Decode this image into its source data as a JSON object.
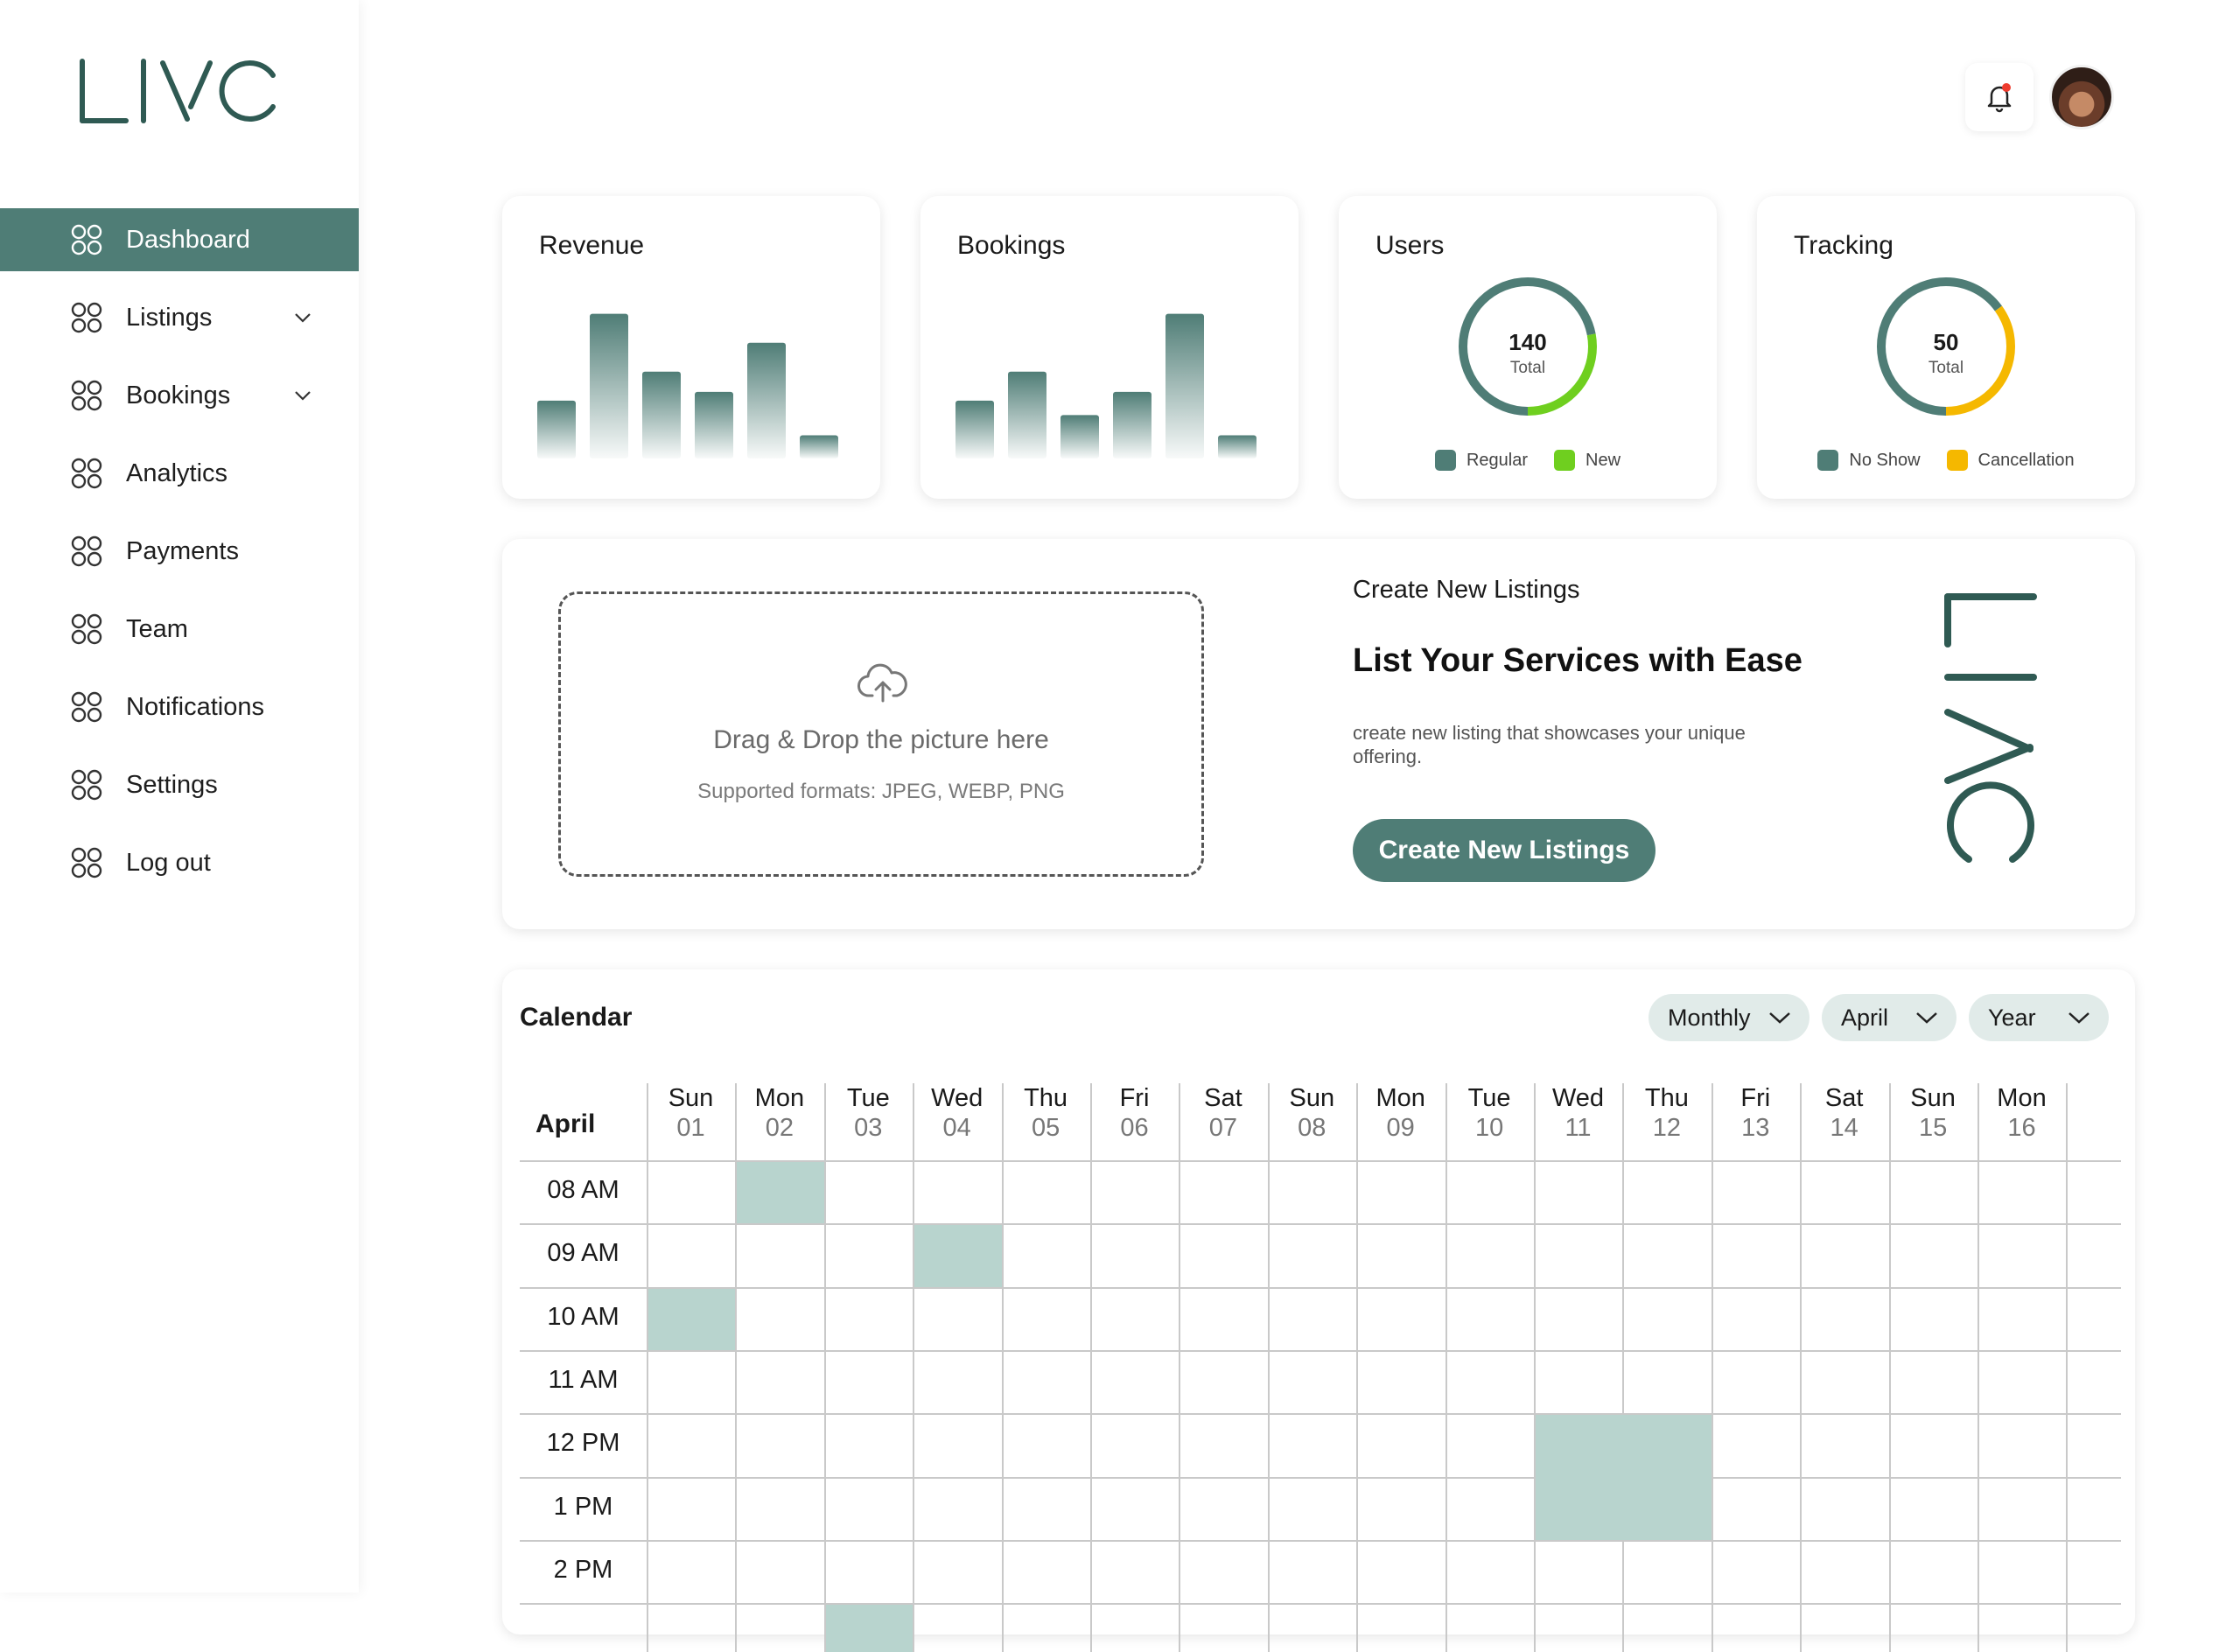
{
  "brand": {
    "logo_text": "LIVO",
    "accent": "#4f7d76",
    "accent_light": "#b8d4ce",
    "green": "#6fcf1f",
    "amber": "#f5b800"
  },
  "sidebar": {
    "items": [
      {
        "label": "Dashboard",
        "active": true,
        "expandable": false
      },
      {
        "label": "Listings",
        "active": false,
        "expandable": true
      },
      {
        "label": "Bookings",
        "active": false,
        "expandable": true
      },
      {
        "label": "Analytics",
        "active": false,
        "expandable": false
      },
      {
        "label": "Payments",
        "active": false,
        "expandable": false
      },
      {
        "label": "Team",
        "active": false,
        "expandable": false
      },
      {
        "label": "Notifications",
        "active": false,
        "expandable": false
      },
      {
        "label": "Settings",
        "active": false,
        "expandable": false
      },
      {
        "label": "Log out",
        "active": false,
        "expandable": false
      }
    ]
  },
  "header": {
    "bell_icon": "bell-icon",
    "has_notification_dot": true
  },
  "stats": {
    "revenue": {
      "title": "Revenue"
    },
    "bookings": {
      "title": "Bookings"
    },
    "users": {
      "title": "Users",
      "value": "140",
      "label": "Total",
      "legend": [
        "Regular",
        "New"
      ]
    },
    "tracking": {
      "title": "Tracking",
      "value": "50",
      "label": "Total",
      "legend": [
        "No Show",
        "Cancellation"
      ]
    }
  },
  "chart_data": [
    {
      "type": "bar",
      "title": "Revenue",
      "values": [
        20,
        50,
        30,
        23,
        40,
        8
      ],
      "categories": [
        "",
        "",
        "",
        "",
        "",
        ""
      ],
      "ylim": [
        0,
        52
      ]
    },
    {
      "type": "bar",
      "title": "Bookings",
      "values": [
        20,
        30,
        15,
        23,
        50,
        8
      ],
      "categories": [
        "",
        "",
        "",
        "",
        "",
        ""
      ],
      "ylim": [
        0,
        52
      ]
    },
    {
      "type": "pie",
      "title": "Users",
      "slices": [
        {
          "name": "Regular",
          "value": 0.72
        },
        {
          "name": "New",
          "value": 0.28
        }
      ]
    },
    {
      "type": "pie",
      "title": "Tracking",
      "slices": [
        {
          "name": "No Show",
          "value": 0.65
        },
        {
          "name": "Cancellation",
          "value": 0.35
        }
      ]
    }
  ],
  "upload": {
    "text": "Drag & Drop the picture here",
    "formats": "Supported formats: JPEG, WEBP, PNG"
  },
  "create_listing": {
    "kicker": "Create New Listings",
    "title": "List Your Services with Ease",
    "description": "create new listing that showcases your unique offering.",
    "button": "Create New Listings"
  },
  "calendar": {
    "title": "Calendar",
    "filters": {
      "view": "Monthly",
      "month": "April",
      "year": "Year"
    },
    "month_label": "April",
    "days": [
      {
        "dow": "Sun",
        "num": "01"
      },
      {
        "dow": "Mon",
        "num": "02"
      },
      {
        "dow": "Tue",
        "num": "03"
      },
      {
        "dow": "Wed",
        "num": "04"
      },
      {
        "dow": "Thu",
        "num": "05"
      },
      {
        "dow": "Fri",
        "num": "06"
      },
      {
        "dow": "Sat",
        "num": "07"
      },
      {
        "dow": "Sun",
        "num": "08"
      },
      {
        "dow": "Mon",
        "num": "09"
      },
      {
        "dow": "Tue",
        "num": "10"
      },
      {
        "dow": "Wed",
        "num": "11"
      },
      {
        "dow": "Thu",
        "num": "12"
      },
      {
        "dow": "Fri",
        "num": "13"
      },
      {
        "dow": "Sat",
        "num": "14"
      },
      {
        "dow": "Sun",
        "num": "15"
      },
      {
        "dow": "Mon",
        "num": "16"
      }
    ],
    "times": [
      "08 AM",
      "09 AM",
      "10 AM",
      "11 AM",
      "12 PM",
      "1 PM",
      "2 PM"
    ],
    "events": [
      {
        "day": 1,
        "slot": 0,
        "days": 1,
        "slots": 1
      },
      {
        "day": 3,
        "slot": 1,
        "days": 1,
        "slots": 1
      },
      {
        "day": 0,
        "slot": 2,
        "days": 1,
        "slots": 1
      },
      {
        "day": 10,
        "slot": 4,
        "days": 2,
        "slots": 2
      },
      {
        "day": 2,
        "slot": 7,
        "days": 1,
        "slots": 1
      }
    ]
  }
}
